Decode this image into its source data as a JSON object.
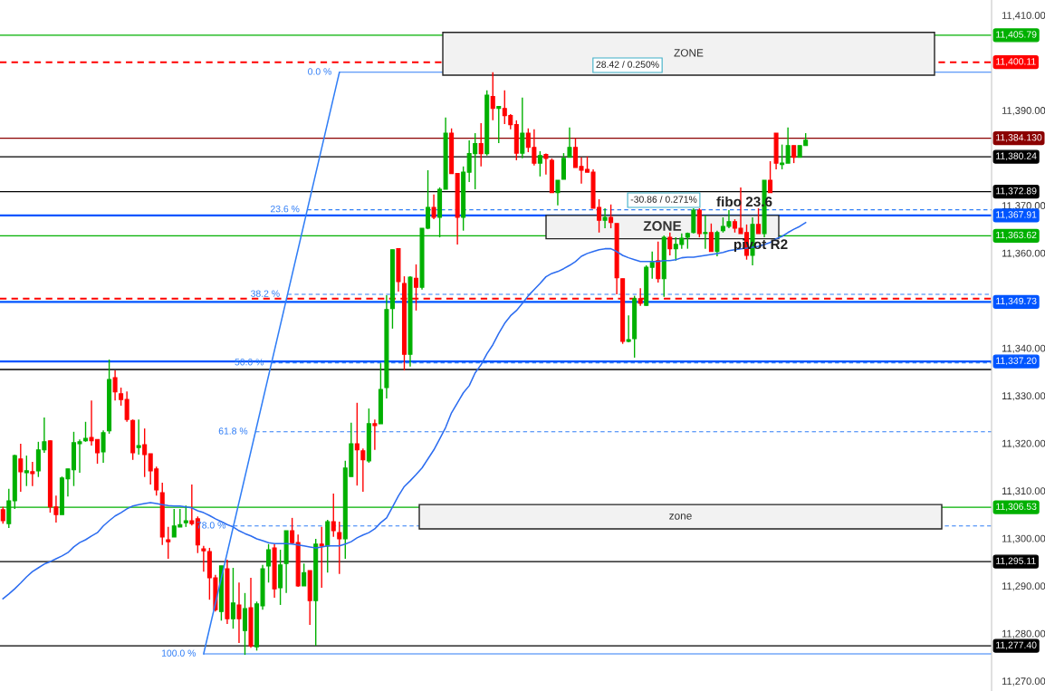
{
  "chart_data": {
    "type": "candlestick",
    "categories": [
      null,
      null,
      null,
      null,
      null,
      null,
      null,
      null,
      null,
      null,
      null,
      null,
      null,
      null,
      null,
      null,
      null,
      null,
      null,
      null,
      null,
      null,
      null,
      null,
      null,
      null,
      null,
      null,
      null,
      null,
      null,
      null,
      null,
      null,
      null,
      null,
      null,
      null,
      null,
      null,
      null,
      null,
      null,
      null,
      null,
      null,
      null,
      null,
      null,
      null,
      null,
      null,
      null,
      null,
      null,
      null,
      null,
      null,
      null,
      null,
      null,
      null,
      null,
      null,
      null,
      null,
      null,
      null,
      null,
      null,
      null,
      null,
      null,
      null,
      null,
      null,
      null,
      null,
      null,
      null,
      null,
      null,
      null,
      null,
      null,
      null,
      null,
      null,
      null,
      null,
      null,
      null,
      null,
      null,
      null,
      null,
      null,
      null,
      null,
      null,
      null,
      null,
      null,
      null,
      null,
      null,
      null,
      null,
      null,
      null,
      null,
      null,
      null,
      null,
      null,
      null,
      null,
      null,
      null,
      null,
      null,
      null,
      null,
      null,
      null,
      null,
      null,
      null,
      null,
      null,
      null,
      null,
      null,
      null,
      null,
      null,
      null,
      null,
      null,
      null,
      null,
      null,
      null,
      null,
      null,
      null,
      null,
      null,
      null,
      null,
      null,
      null,
      null,
      null,
      null,
      null,
      null,
      null,
      null,
      null,
      null,
      null,
      null,
      null,
      null,
      null,
      null,
      null
    ],
    "ohlc": [
      [
        11306.0,
        11306.6,
        11303.1,
        11303.7
      ],
      [
        11303.1,
        11310.4,
        11302.2,
        11307.9
      ],
      [
        11307.9,
        11317.6,
        11306.2,
        11317.4
      ],
      [
        11316.7,
        11319.9,
        11309.8,
        11314.0
      ],
      [
        11313.8,
        11317.4,
        11311.0,
        11314.2
      ],
      [
        11314.0,
        11316.1,
        11311.0,
        11313.6
      ],
      [
        11314.2,
        11320.3,
        11312.9,
        11318.6
      ],
      [
        11318.6,
        11325.4,
        11318.0,
        11320.3
      ],
      [
        11320.5,
        11320.6,
        11305.4,
        11306.6
      ],
      [
        11306.6,
        11309.0,
        11303.3,
        11305.0
      ],
      [
        11305.0,
        11313.0,
        11305.0,
        11312.7
      ],
      [
        11312.5,
        11314.6,
        11308.8,
        11314.6
      ],
      [
        11314.4,
        11322.4,
        11311.0,
        11320.1
      ],
      [
        11319.9,
        11320.8,
        11313.8,
        11320.3
      ],
      [
        11320.5,
        11324.5,
        11320.3,
        11321.0
      ],
      [
        11321.2,
        11329.0,
        11319.5,
        11320.5
      ],
      [
        11320.8,
        11320.8,
        11315.7,
        11318.0
      ],
      [
        11318.2,
        11322.7,
        11315.9,
        11322.2
      ],
      [
        11322.6,
        11337.6,
        11322.0,
        11333.4
      ],
      [
        11333.8,
        11335.3,
        11329.0,
        11330.8
      ],
      [
        11330.4,
        11331.7,
        11327.9,
        11329.2
      ],
      [
        11329.2,
        11330.9,
        11324.5,
        11325.0
      ],
      [
        11324.8,
        11325.0,
        11316.5,
        11318.0
      ],
      [
        11319.1,
        11325.0,
        11317.6,
        11319.5
      ],
      [
        11319.7,
        11323.1,
        11312.9,
        11317.6
      ],
      [
        11317.8,
        11317.8,
        11311.3,
        11314.2
      ],
      [
        11314.6,
        11315.1,
        11309.0,
        11310.2
      ],
      [
        11309.6,
        11311.7,
        11298.6,
        11300.3
      ],
      [
        11299.7,
        11302.4,
        11295.7,
        11299.3
      ],
      [
        11300.3,
        11306.2,
        11300.3,
        11302.6
      ],
      [
        11302.4,
        11306.2,
        11302.4,
        11302.9
      ],
      [
        11303.3,
        11306.9,
        11302.4,
        11303.7
      ],
      [
        11303.7,
        11311.3,
        11302.7,
        11303.1
      ],
      [
        11304.1,
        11304.6,
        11296.9,
        11298.6
      ],
      [
        11297.8,
        11298.4,
        11293.0,
        11297.4
      ],
      [
        11297.2,
        11298.0,
        11287.1,
        11291.7
      ],
      [
        11291.7,
        11292.3,
        11284.6,
        11285.0
      ],
      [
        11284.6,
        11294.2,
        11282.7,
        11294.2
      ],
      [
        11293.6,
        11295.5,
        11282.0,
        11283.1
      ],
      [
        11283.1,
        11293.8,
        11281.0,
        11286.4
      ],
      [
        11286.0,
        11290.7,
        11278.0,
        11283.1
      ],
      [
        11280.6,
        11288.5,
        11275.5,
        11285.2
      ],
      [
        11285.4,
        11291.7,
        11277.0,
        11277.4
      ],
      [
        11277.2,
        11286.7,
        11276.4,
        11286.2
      ],
      [
        11285.8,
        11294.4,
        11285.0,
        11293.6
      ],
      [
        11294.2,
        11298.8,
        11290.7,
        11297.6
      ],
      [
        11298.0,
        11298.9,
        11287.5,
        11289.4
      ],
      [
        11289.6,
        11297.6,
        11286.0,
        11294.4
      ],
      [
        11294.7,
        11301.6,
        11288.5,
        11301.6
      ],
      [
        11301.6,
        11304.3,
        11298.8,
        11299.1
      ],
      [
        11299.1,
        11300.8,
        11289.8,
        11290.0
      ],
      [
        11290.0,
        11294.7,
        11290.0,
        11292.8
      ],
      [
        11293.2,
        11293.2,
        11281.8,
        11286.9
      ],
      [
        11286.9,
        11299.9,
        11277.4,
        11298.8
      ],
      [
        11298.8,
        11302.4,
        11289.6,
        11298.4
      ],
      [
        11298.4,
        11303.9,
        11292.8,
        11303.5
      ],
      [
        11303.5,
        11309.4,
        11300.3,
        11301.6
      ],
      [
        11301.2,
        11303.5,
        11292.5,
        11299.9
      ],
      [
        11299.9,
        11316.3,
        11295.7,
        11314.8
      ],
      [
        11313.0,
        11324.3,
        11313.0,
        11319.9
      ],
      [
        11319.9,
        11328.5,
        11311.1,
        11318.6
      ],
      [
        11318.4,
        11318.9,
        11309.8,
        11316.5
      ],
      [
        11316.3,
        11327.3,
        11315.9,
        11324.1
      ],
      [
        11324.1,
        11325.0,
        11318.6,
        11323.7
      ],
      [
        11324.1,
        11336.8,
        11324.1,
        11331.3
      ],
      [
        11331.7,
        11351.1,
        11329.4,
        11348.1
      ],
      [
        11348.3,
        11360.7,
        11344.1,
        11360.7
      ],
      [
        11360.9,
        11361.0,
        11351.9,
        11354.0
      ],
      [
        11353.6,
        11355.1,
        11335.3,
        11338.7
      ],
      [
        11338.7,
        11355.1,
        11336.1,
        11354.9
      ],
      [
        11354.7,
        11357.6,
        11347.9,
        11352.8
      ],
      [
        11352.8,
        11365.2,
        11352.3,
        11365.2
      ],
      [
        11365.2,
        11377.4,
        11365.0,
        11369.6
      ],
      [
        11369.6,
        11372.3,
        11367.1,
        11367.5
      ],
      [
        11367.5,
        11373.8,
        11363.3,
        11373.4
      ],
      [
        11373.4,
        11388.5,
        11373.4,
        11385.2
      ],
      [
        11385.2,
        11386.2,
        11376.7,
        11376.7
      ],
      [
        11376.7,
        11376.7,
        11361.8,
        11367.5
      ],
      [
        11367.5,
        11378.2,
        11364.7,
        11377.0
      ],
      [
        11377.0,
        11383.7,
        11374.9,
        11380.9
      ],
      [
        11380.9,
        11385.2,
        11373.4,
        11383.0
      ],
      [
        11383.0,
        11387.3,
        11378.2,
        11380.9
      ],
      [
        11380.9,
        11394.2,
        11380.5,
        11393.2
      ],
      [
        11392.9,
        11398.0,
        11387.9,
        11390.4
      ],
      [
        11390.4,
        11390.8,
        11383.1,
        11390.8
      ],
      [
        11390.4,
        11394.2,
        11387.1,
        11388.9
      ],
      [
        11388.9,
        11389.2,
        11386.0,
        11387.0
      ],
      [
        11387.0,
        11387.9,
        11379.5,
        11381.0
      ],
      [
        11381.0,
        11392.7,
        11379.9,
        11385.2
      ],
      [
        11385.2,
        11386.2,
        11381.2,
        11382.2
      ],
      [
        11382.2,
        11386.0,
        11378.4,
        11378.9
      ],
      [
        11378.9,
        11381.4,
        11376.1,
        11380.5
      ],
      [
        11380.7,
        11380.9,
        11376.5,
        11379.9
      ],
      [
        11379.5,
        11379.9,
        11372.7,
        11372.7
      ],
      [
        11372.7,
        11375.3,
        11370.0,
        11375.3
      ],
      [
        11375.5,
        11381.0,
        11375.5,
        11379.9
      ],
      [
        11380.1,
        11386.4,
        11380.1,
        11382.2
      ],
      [
        11382.2,
        11384.1,
        11378.0,
        11378.0
      ],
      [
        11378.2,
        11380.1,
        11374.6,
        11377.4
      ],
      [
        11377.6,
        11380.3,
        11377.0,
        11377.0
      ],
      [
        11377.0,
        11377.6,
        11369.4,
        11369.4
      ],
      [
        11369.6,
        11371.3,
        11364.3,
        11366.9
      ],
      [
        11366.9,
        11369.4,
        11365.2,
        11367.5
      ],
      [
        11367.5,
        11370.2,
        11365.2,
        11366.4
      ],
      [
        11366.2,
        11366.2,
        11351.3,
        11354.8
      ],
      [
        11354.6,
        11354.6,
        11340.9,
        11341.4
      ],
      [
        11341.4,
        11346.9,
        11341.2,
        11341.8
      ],
      [
        11342.0,
        11351.0,
        11338.0,
        11350.4
      ],
      [
        11350.4,
        11352.6,
        11348.9,
        11349.4
      ],
      [
        11349.0,
        11357.4,
        11348.9,
        11357.0
      ],
      [
        11357.0,
        11360.3,
        11354.6,
        11358.0
      ],
      [
        11358.4,
        11362.4,
        11353.8,
        11354.6
      ],
      [
        11354.6,
        11363.7,
        11350.8,
        11363.3
      ],
      [
        11363.3,
        11364.3,
        11359.5,
        11360.9
      ],
      [
        11360.9,
        11363.3,
        11358.4,
        11361.8
      ],
      [
        11361.8,
        11364.1,
        11360.9,
        11363.1
      ],
      [
        11363.3,
        11364.3,
        11360.9,
        11364.1
      ],
      [
        11364.3,
        11369.4,
        11364.1,
        11369.0
      ],
      [
        11369.0,
        11369.4,
        11363.3,
        11364.1
      ],
      [
        11364.1,
        11367.9,
        11360.9,
        11364.3
      ],
      [
        11364.3,
        11366.2,
        11360.3,
        11360.3
      ],
      [
        11360.3,
        11364.7,
        11359.3,
        11364.3
      ],
      [
        11364.7,
        11367.5,
        11364.3,
        11365.6
      ],
      [
        11365.6,
        11369.0,
        11365.2,
        11366.6
      ],
      [
        11366.6,
        11367.1,
        11364.3,
        11365.2
      ],
      [
        11365.2,
        11373.8,
        11364.1,
        11364.1
      ],
      [
        11364.3,
        11366.0,
        11358.6,
        11359.5
      ],
      [
        11359.5,
        11367.5,
        11357.4,
        11366.0
      ],
      [
        11366.0,
        11369.4,
        11364.1,
        11364.1
      ],
      [
        11364.1,
        11375.3,
        11363.3,
        11375.3
      ],
      [
        11375.3,
        11379.3,
        11372.7,
        11372.7
      ],
      [
        11385.2,
        11385.2,
        11377.6,
        11378.9
      ],
      [
        11378.6,
        11382.8,
        11377.6,
        11378.9
      ],
      [
        11378.9,
        11386.4,
        11378.9,
        11382.6
      ],
      [
        11382.6,
        11382.6,
        11378.9,
        11380.1
      ],
      [
        11380.1,
        11382.6,
        11380.1,
        11382.6
      ],
      [
        11382.6,
        11385.2,
        11382.6,
        11383.7
      ],
      null,
      null,
      null,
      null,
      null,
      null,
      null,
      null,
      null,
      null,
      null,
      null,
      null,
      null,
      null,
      null,
      null,
      null,
      null,
      null,
      null,
      null,
      null,
      null,
      null,
      null,
      null,
      null,
      null,
      null,
      null
    ],
    "series": [
      {
        "type": "line",
        "color": "#2b6cf0",
        "values": [
          11287.3,
          11288.3,
          11289.4,
          11290.6,
          11291.9,
          11293.0,
          11293.8,
          11294.6,
          11295.1,
          11295.7,
          11296.3,
          11297.0,
          11298.2,
          11299.1,
          11299.7,
          11300.5,
          11301.2,
          11302.6,
          11303.7,
          11304.7,
          11305.4,
          11306.2,
          11306.8,
          11307.1,
          11307.3,
          11307.5,
          11307.3,
          11307.1,
          11306.9,
          11306.8,
          11306.8,
          11306.6,
          11306.4,
          11305.8,
          11305.4,
          11304.8,
          11304.1,
          11303.5,
          11302.9,
          11302.4,
          11301.6,
          11301.0,
          11300.5,
          11299.9,
          11299.5,
          11299.1,
          11298.9,
          11298.9,
          11298.9,
          11298.8,
          11298.6,
          11298.4,
          11298.2,
          11298.0,
          11298.2,
          11298.4,
          11298.4,
          11298.4,
          11298.8,
          11299.3,
          11300.1,
          11300.7,
          11301.2,
          11302.0,
          11303.3,
          11304.3,
          11306.6,
          11308.9,
          11310.9,
          11312.1,
          11313.4,
          11314.8,
          11316.7,
          11318.6,
          11320.9,
          11323.3,
          11326.4,
          11328.5,
          11330.6,
          11332.1,
          11334.8,
          11336.5,
          11338.8,
          11340.7,
          11343.1,
          11345.2,
          11346.8,
          11347.9,
          11349.4,
          11351.0,
          11352.3,
          11353.6,
          11355.0,
          11355.7,
          11356.1,
          11356.7,
          11357.4,
          11358.2,
          11359.3,
          11359.9,
          11360.3,
          11360.7,
          11360.9,
          11360.9,
          11360.3,
          11359.5,
          11359.0,
          11358.6,
          11358.2,
          11358.2,
          11358.2,
          11358.2,
          11358.4,
          11358.4,
          11358.6,
          11359.0,
          11359.1,
          11359.1,
          11359.3,
          11359.5,
          11359.7,
          11359.9,
          11360.1,
          11360.5,
          11360.7,
          11360.9,
          11361.0,
          11361.2,
          11361.4,
          11361.8,
          11362.2,
          11363.0,
          11363.5,
          11364.3,
          11365.0,
          11365.6,
          11366.4,
          null,
          null,
          null,
          null,
          null,
          null,
          null,
          null,
          null,
          null,
          null,
          null,
          null,
          null,
          null,
          null,
          null,
          null,
          null,
          null,
          null,
          null,
          null,
          null,
          null,
          null,
          null,
          null,
          null,
          null,
          null
        ]
      },
      {
        "type": "line",
        "color": "#2f7df6",
        "values": [
          null,
          null,
          null,
          null,
          null,
          null,
          null,
          null,
          null,
          null,
          null,
          null,
          null,
          null,
          null,
          null,
          null,
          null,
          null,
          null,
          null,
          null,
          null,
          null,
          null,
          null,
          null,
          null,
          null,
          null,
          null,
          null,
          null,
          null,
          11275.7,
          null,
          null,
          null,
          null,
          null,
          null,
          null,
          null,
          null,
          null,
          null,
          null,
          null,
          null,
          null,
          null,
          null,
          null,
          null,
          null,
          null,
          null,
          11398.0,
          null,
          null,
          null,
          null,
          null,
          null,
          null,
          null,
          null,
          null,
          null,
          null,
          null,
          null,
          null,
          null,
          null,
          null,
          null,
          null,
          null,
          null,
          null,
          null,
          null,
          null,
          null,
          null,
          null,
          null,
          null,
          null,
          null,
          null,
          null,
          null,
          null,
          null,
          null,
          null,
          null,
          null,
          null,
          null,
          null,
          null,
          null,
          null,
          null,
          null,
          null,
          null,
          null,
          null,
          null,
          null,
          null,
          null,
          null,
          null,
          null,
          null,
          null,
          null,
          null,
          null,
          null,
          null,
          null,
          null,
          null,
          null,
          null,
          null,
          null,
          null,
          null,
          null,
          null,
          null,
          null,
          null,
          null,
          null,
          null,
          null,
          null,
          null,
          null,
          null,
          null,
          null,
          null,
          null,
          null,
          null,
          null,
          null,
          null,
          null,
          null,
          null,
          null,
          null,
          null,
          null,
          null,
          null,
          null,
          null
        ]
      }
    ],
    "ylim": [
      11267.9,
      11413.2
    ],
    "yticks": [
      {
        "value": 11270,
        "label": "11,270.00"
      },
      {
        "value": 11280,
        "label": "11,280.00"
      },
      {
        "value": 11290,
        "label": "11,290.00"
      },
      {
        "value": 11300,
        "label": "11,300.00"
      },
      {
        "value": 11310,
        "label": "11,310.00"
      },
      {
        "value": 11320,
        "label": "11,320.00"
      },
      {
        "value": 11330,
        "label": "11,330.00"
      },
      {
        "value": 11340,
        "label": "11,340.00"
      },
      {
        "value": 11350,
        "label": null
      },
      {
        "value": 11360,
        "label": "11,360.00"
      },
      {
        "value": 11370,
        "label": "11,370.00"
      },
      {
        "value": 11380,
        "label": null
      },
      {
        "value": 11390,
        "label": "11,390.00"
      },
      {
        "value": 11400,
        "label": null
      },
      {
        "value": 11410,
        "label": "11,410.00"
      }
    ],
    "tick_labels": "y",
    "grid": false,
    "legend": false,
    "ref_lines": [
      {
        "axis": "y",
        "value": 11405.79,
        "label": "11,405.79",
        "color": "#00b000",
        "line_style": "solid"
      },
      {
        "axis": "y",
        "value": 11400.11,
        "label": "11,400.11",
        "color": "#ff0000",
        "line_style": "dashed"
      },
      {
        "axis": "y",
        "value": 11384.13,
        "label": "11,384.130",
        "color": "#8b0000",
        "line_style": "solid"
      },
      {
        "axis": "y",
        "value": 11380.24,
        "label": "11,380.24",
        "color": "#000000",
        "line_style": "solid"
      },
      {
        "axis": "y",
        "value": 11372.89,
        "label": "11,372.89",
        "color": "#000000",
        "line_style": "solid"
      },
      {
        "axis": "y",
        "value": 11367.91,
        "label": "11,367.91",
        "color": "#0055ff",
        "line_style": "solid"
      },
      {
        "axis": "y",
        "value": 11363.62,
        "label": "11,363.62",
        "color": "#00b000",
        "line_style": "solid"
      },
      {
        "axis": "y",
        "value": 11350.4,
        "label": null,
        "color": "#ff0000",
        "line_style": "dashed"
      },
      {
        "axis": "y",
        "value": 11349.73,
        "label": "11,349.73",
        "color": "#0055ff",
        "line_style": "solid"
      },
      {
        "axis": "y",
        "value": 11337.2,
        "label": "11,337.20",
        "color": "#0055ff",
        "line_style": "solid"
      },
      {
        "axis": "y",
        "value": 11335.5,
        "label": null,
        "color": "#000000",
        "line_style": "solid"
      },
      {
        "axis": "y",
        "value": 11306.53,
        "label": "11,306.53",
        "color": "#00b000",
        "line_style": "solid"
      },
      {
        "axis": "y",
        "value": 11295.11,
        "label": "11,295.11",
        "color": "#000000",
        "line_style": "solid"
      },
      {
        "axis": "y",
        "value": 11277.4,
        "label": "11,277.40",
        "color": "#000000",
        "line_style": "solid"
      },
      {
        "axis": "y",
        "value": 11398.0,
        "color": "#2f7df6",
        "line_style": "solid"
      },
      {
        "axis": "y",
        "value": 11369.1,
        "color": "#2f7df6",
        "line_style": "dashed"
      },
      {
        "axis": "y",
        "value": 11351.3,
        "color": "#2f7df6",
        "line_style": "dashed"
      },
      {
        "axis": "y",
        "value": 11336.9,
        "color": "#2f7df6",
        "line_style": "dashed"
      },
      {
        "axis": "y",
        "value": 11322.4,
        "color": "#2f7df6",
        "line_style": "dashed"
      },
      {
        "axis": "y",
        "value": 11302.6,
        "color": "#2f7df6",
        "line_style": "dashed"
      },
      {
        "axis": "y",
        "value": 11275.7,
        "color": "#2f7df6",
        "line_style": "solid"
      }
    ],
    "bands": [
      {
        "axis": "y",
        "from": 11397.4,
        "to": 11406.4,
        "label": "ZONE",
        "color": "#f2f2f2"
      },
      {
        "axis": "y",
        "from": 11363.0,
        "to": 11367.9,
        "label": "ZONE",
        "color": "#f2f2f2"
      },
      {
        "axis": "y",
        "from": 11302.0,
        "to": 11307.1,
        "label": "zone",
        "color": "#f2f2f2"
      }
    ],
    "annotations": [
      "28.42 / 0.250%",
      "-30.86 / 0.271%",
      "fibo 23.6",
      "pivot R2",
      "0.0 %",
      "23.6 %",
      "38.2 %",
      "50.0 %",
      "61.8 %",
      "78.0 %",
      "100.0 %"
    ]
  }
}
